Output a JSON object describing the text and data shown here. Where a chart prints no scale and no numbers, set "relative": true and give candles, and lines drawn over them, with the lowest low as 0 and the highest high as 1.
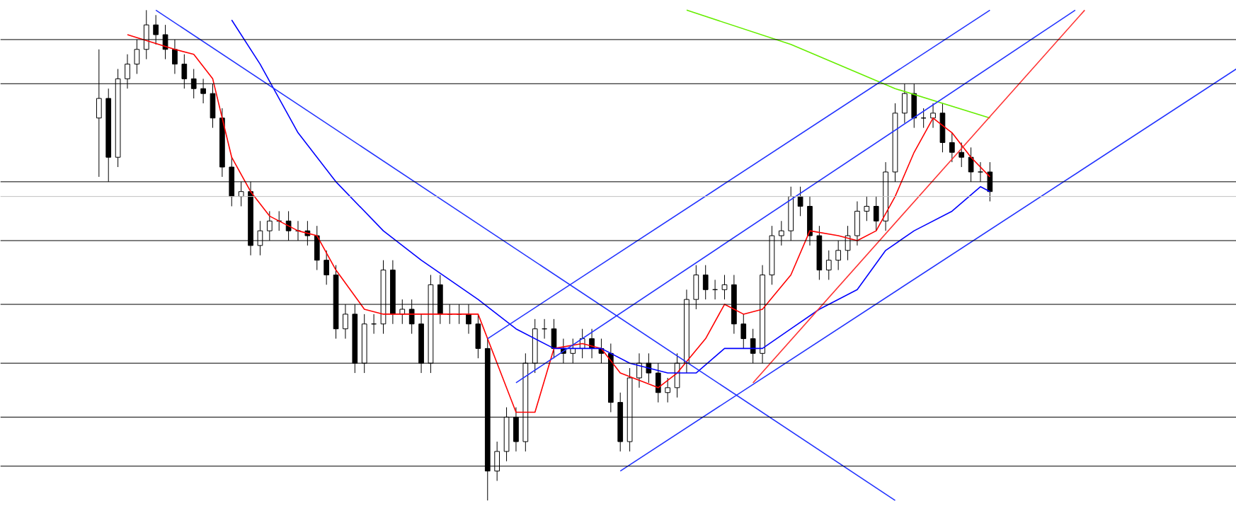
{
  "chart_data": {
    "type": "candlestick",
    "relative": true,
    "grid": false,
    "categories": [
      null,
      null,
      null,
      null,
      null,
      null,
      null,
      null,
      null,
      null,
      null,
      null,
      null,
      null,
      null,
      null,
      null,
      null,
      null,
      null,
      null,
      null,
      null,
      null,
      null,
      null,
      null,
      null,
      null,
      null,
      null,
      null,
      null,
      null,
      null,
      null,
      null,
      null,
      null,
      null,
      null,
      null,
      null,
      null,
      null,
      null,
      null,
      null,
      null,
      null,
      null,
      null,
      null,
      null,
      null,
      null,
      null,
      null,
      null,
      null,
      null,
      null,
      null,
      null,
      null,
      null,
      null,
      null,
      null,
      null,
      null,
      null,
      null,
      null,
      null,
      null,
      null,
      null,
      null,
      null,
      null,
      null,
      null,
      null,
      null,
      null,
      null,
      null,
      null,
      null,
      null,
      null,
      null,
      null,
      null,
      null,
      null,
      null,
      null,
      null,
      null,
      null,
      null,
      null,
      null,
      null,
      null,
      null,
      null,
      null,
      null,
      null,
      null,
      null,
      null,
      null,
      null,
      null,
      null,
      null,
      null
    ],
    "ohlc": [
      [
        0.78,
        0.92,
        0.66,
        0.82
      ],
      [
        0.82,
        0.84,
        0.65,
        0.7
      ],
      [
        0.7,
        0.88,
        0.68,
        0.86
      ],
      [
        0.86,
        0.91,
        0.84,
        0.89
      ],
      [
        0.89,
        0.94,
        0.87,
        0.92
      ],
      [
        0.92,
        1.0,
        0.9,
        0.97
      ],
      [
        0.97,
        0.99,
        0.93,
        0.95
      ],
      [
        0.95,
        0.97,
        0.9,
        0.92
      ],
      [
        0.92,
        0.94,
        0.87,
        0.89
      ],
      [
        0.89,
        0.91,
        0.84,
        0.86
      ],
      [
        0.86,
        0.88,
        0.82,
        0.84
      ],
      [
        0.84,
        0.86,
        0.81,
        0.83
      ],
      [
        0.83,
        0.85,
        0.76,
        0.78
      ],
      [
        0.78,
        0.8,
        0.66,
        0.68
      ],
      [
        0.68,
        0.7,
        0.6,
        0.62
      ],
      [
        0.62,
        0.65,
        0.6,
        0.63
      ],
      [
        0.63,
        0.65,
        0.5,
        0.52
      ],
      [
        0.52,
        0.57,
        0.5,
        0.55
      ],
      [
        0.55,
        0.59,
        0.53,
        0.57
      ],
      [
        0.57,
        0.59,
        0.55,
        0.57
      ],
      [
        0.57,
        0.59,
        0.53,
        0.55
      ],
      [
        0.55,
        0.57,
        0.53,
        0.55
      ],
      [
        0.55,
        0.57,
        0.52,
        0.54
      ],
      [
        0.54,
        0.56,
        0.47,
        0.49
      ],
      [
        0.49,
        0.51,
        0.44,
        0.46
      ],
      [
        0.46,
        0.48,
        0.33,
        0.35
      ],
      [
        0.35,
        0.4,
        0.33,
        0.38
      ],
      [
        0.38,
        0.4,
        0.26,
        0.28
      ],
      [
        0.28,
        0.38,
        0.26,
        0.36
      ],
      [
        0.36,
        0.38,
        0.34,
        0.36
      ],
      [
        0.36,
        0.49,
        0.34,
        0.47
      ],
      [
        0.47,
        0.49,
        0.36,
        0.38
      ],
      [
        0.38,
        0.41,
        0.36,
        0.39
      ],
      [
        0.39,
        0.41,
        0.34,
        0.36
      ],
      [
        0.36,
        0.38,
        0.26,
        0.28
      ],
      [
        0.28,
        0.46,
        0.26,
        0.44
      ],
      [
        0.44,
        0.46,
        0.36,
        0.38
      ],
      [
        0.38,
        0.4,
        0.36,
        0.38
      ],
      [
        0.38,
        0.4,
        0.36,
        0.38
      ],
      [
        0.38,
        0.4,
        0.34,
        0.36
      ],
      [
        0.36,
        0.38,
        0.29,
        0.31
      ],
      [
        0.31,
        0.33,
        0.0,
        0.06
      ],
      [
        0.06,
        0.12,
        0.04,
        0.1
      ],
      [
        0.1,
        0.19,
        0.08,
        0.17
      ],
      [
        0.17,
        0.19,
        0.1,
        0.12
      ],
      [
        0.12,
        0.3,
        0.1,
        0.28
      ],
      [
        0.28,
        0.37,
        0.26,
        0.35
      ],
      [
        0.35,
        0.37,
        0.33,
        0.35
      ],
      [
        0.35,
        0.37,
        0.29,
        0.31
      ],
      [
        0.31,
        0.33,
        0.28,
        0.3
      ],
      [
        0.3,
        0.33,
        0.28,
        0.31
      ],
      [
        0.31,
        0.35,
        0.29,
        0.33
      ],
      [
        0.33,
        0.35,
        0.29,
        0.31
      ],
      [
        0.31,
        0.33,
        0.28,
        0.3
      ],
      [
        0.3,
        0.32,
        0.18,
        0.2
      ],
      [
        0.2,
        0.22,
        0.1,
        0.12
      ],
      [
        0.12,
        0.27,
        0.1,
        0.25
      ],
      [
        0.25,
        0.3,
        0.23,
        0.28
      ],
      [
        0.28,
        0.3,
        0.24,
        0.26
      ],
      [
        0.26,
        0.28,
        0.2,
        0.22
      ],
      [
        0.22,
        0.25,
        0.2,
        0.23
      ],
      [
        0.23,
        0.3,
        0.21,
        0.28
      ],
      [
        0.28,
        0.43,
        0.26,
        0.41
      ],
      [
        0.41,
        0.48,
        0.39,
        0.46
      ],
      [
        0.46,
        0.48,
        0.41,
        0.43
      ],
      [
        0.43,
        0.45,
        0.41,
        0.43
      ],
      [
        0.43,
        0.46,
        0.41,
        0.44
      ],
      [
        0.44,
        0.46,
        0.34,
        0.36
      ],
      [
        0.36,
        0.38,
        0.31,
        0.33
      ],
      [
        0.33,
        0.35,
        0.28,
        0.3
      ],
      [
        0.3,
        0.48,
        0.28,
        0.46
      ],
      [
        0.46,
        0.56,
        0.44,
        0.54
      ],
      [
        0.54,
        0.57,
        0.52,
        0.55
      ],
      [
        0.55,
        0.64,
        0.53,
        0.62
      ],
      [
        0.62,
        0.64,
        0.58,
        0.6
      ],
      [
        0.6,
        0.62,
        0.52,
        0.54
      ],
      [
        0.54,
        0.56,
        0.45,
        0.47
      ],
      [
        0.47,
        0.51,
        0.45,
        0.49
      ],
      [
        0.49,
        0.53,
        0.47,
        0.51
      ],
      [
        0.51,
        0.56,
        0.49,
        0.54
      ],
      [
        0.54,
        0.61,
        0.52,
        0.59
      ],
      [
        0.59,
        0.62,
        0.57,
        0.6
      ],
      [
        0.6,
        0.62,
        0.55,
        0.57
      ],
      [
        0.57,
        0.69,
        0.55,
        0.67
      ],
      [
        0.67,
        0.81,
        0.65,
        0.79
      ],
      [
        0.79,
        0.85,
        0.77,
        0.83
      ],
      [
        0.83,
        0.85,
        0.76,
        0.78
      ],
      [
        0.78,
        0.8,
        0.76,
        0.78
      ],
      [
        0.78,
        0.81,
        0.76,
        0.79
      ],
      [
        0.79,
        0.81,
        0.71,
        0.73
      ],
      [
        0.73,
        0.75,
        0.69,
        0.71
      ],
      [
        0.71,
        0.73,
        0.68,
        0.7
      ],
      [
        0.7,
        0.72,
        0.65,
        0.67
      ],
      [
        0.67,
        0.69,
        0.65,
        0.67
      ],
      [
        0.67,
        0.69,
        0.61,
        0.63
      ],
      null,
      null,
      null,
      null,
      null,
      null,
      null,
      null,
      null,
      null,
      null,
      null,
      null,
      null,
      null,
      null,
      null,
      null,
      null,
      null,
      null,
      null,
      null,
      null,
      null,
      null
    ],
    "series": [
      {
        "type": "line",
        "color": "#ff0000",
        "values": [
          null,
          null,
          null,
          0.95,
          null,
          null,
          null,
          null,
          0.92,
          null,
          0.91,
          null,
          0.86,
          null,
          0.7,
          null,
          0.63,
          null,
          0.58,
          null,
          null,
          0.55,
          null,
          0.54,
          null,
          0.47,
          null,
          null,
          0.39,
          null,
          0.38,
          null,
          null,
          0.38,
          null,
          null,
          0.38,
          null,
          null,
          null,
          0.38,
          null,
          0.28,
          null,
          0.18,
          null,
          0.18,
          null,
          0.31,
          null,
          null,
          0.32,
          null,
          0.31,
          null,
          0.26,
          null,
          null,
          null,
          0.23,
          null,
          0.26,
          null,
          null,
          0.33,
          null,
          0.4,
          null,
          0.38,
          null,
          0.39,
          null,
          null,
          0.46,
          null,
          0.55,
          null,
          null,
          0.54,
          null,
          0.53,
          null,
          0.55,
          null,
          0.62,
          null,
          0.71,
          null,
          0.78,
          null,
          0.75,
          null,
          0.7,
          null,
          0.66,
          null,
          null,
          null,
          null,
          null,
          null,
          null,
          null,
          null,
          null,
          null,
          null,
          null,
          null,
          null,
          null,
          null,
          null,
          null,
          null,
          null,
          null,
          null,
          null,
          null,
          null
        ]
      },
      {
        "type": "line",
        "color": "#0000ff",
        "values": [
          null,
          null,
          null,
          null,
          null,
          null,
          null,
          null,
          null,
          null,
          null,
          null,
          null,
          null,
          0.98,
          null,
          null,
          0.89,
          null,
          null,
          null,
          0.75,
          null,
          null,
          null,
          0.65,
          null,
          null,
          null,
          null,
          0.55,
          null,
          null,
          null,
          0.49,
          null,
          null,
          0.45,
          null,
          null,
          0.41,
          null,
          null,
          null,
          0.35,
          null,
          null,
          null,
          0.31,
          null,
          null,
          null,
          null,
          0.31,
          null,
          null,
          0.28,
          null,
          null,
          null,
          0.26,
          null,
          null,
          0.26,
          null,
          null,
          0.31,
          null,
          null,
          null,
          0.31,
          null,
          null,
          0.35,
          null,
          null,
          0.39,
          null,
          null,
          null,
          0.43,
          null,
          null,
          0.51,
          null,
          null,
          0.55,
          null,
          null,
          null,
          0.59,
          null,
          null,
          0.64,
          0.63,
          null,
          null,
          null,
          null,
          null,
          null,
          null,
          null,
          null,
          null,
          null,
          null,
          null,
          null,
          null,
          null,
          null,
          null,
          null,
          null,
          null,
          null,
          null,
          null,
          null,
          null
        ]
      },
      {
        "type": "line",
        "color": "#66ee00",
        "values": [
          null,
          null,
          null,
          null,
          null,
          null,
          null,
          null,
          null,
          null,
          null,
          null,
          null,
          null,
          null,
          null,
          null,
          null,
          null,
          null,
          null,
          null,
          null,
          null,
          null,
          null,
          null,
          null,
          null,
          null,
          null,
          null,
          null,
          null,
          null,
          null,
          null,
          null,
          null,
          null,
          null,
          null,
          null,
          null,
          null,
          null,
          null,
          null,
          null,
          null,
          null,
          null,
          null,
          null,
          null,
          null,
          null,
          null,
          null,
          null,
          null,
          null,
          1.0,
          null,
          null,
          null,
          null,
          null,
          null,
          null,
          null,
          null,
          null,
          0.93,
          null,
          null,
          null,
          null,
          null,
          null,
          null,
          null,
          null,
          null,
          0.84,
          null,
          null,
          null,
          null,
          null,
          null,
          null,
          null,
          null,
          0.78,
          null,
          null,
          null,
          null,
          null,
          null,
          null,
          null,
          null,
          null,
          null,
          null,
          null,
          null,
          null,
          null,
          null,
          null,
          null,
          null,
          null,
          null,
          null,
          null,
          null,
          null
        ]
      },
      {
        "type": "line",
        "color": "#2233ff",
        "values": [
          null,
          null,
          null,
          null,
          null,
          null,
          1.0,
          null,
          null,
          null,
          null,
          null,
          null,
          null,
          null,
          null,
          null,
          null,
          null,
          null,
          null,
          null,
          null,
          null,
          null,
          null,
          null,
          null,
          null,
          null,
          null,
          null,
          null,
          null,
          null,
          null,
          null,
          null,
          null,
          null,
          null,
          null,
          null,
          null,
          null,
          null,
          null,
          null,
          null,
          null,
          null,
          null,
          null,
          null,
          null,
          null,
          null,
          null,
          null,
          null,
          null,
          null,
          null,
          null,
          null,
          null,
          null,
          null,
          null,
          null,
          null,
          null,
          null,
          null,
          null,
          null,
          null,
          null,
          null,
          null,
          null,
          null,
          null,
          null,
          0.0,
          null,
          null,
          null,
          null,
          null,
          null,
          null,
          null,
          null,
          null,
          null,
          null,
          null,
          null,
          null,
          null,
          null,
          null,
          null,
          null,
          null,
          null,
          null,
          null,
          null,
          null,
          null,
          null,
          null,
          null,
          null,
          null,
          null,
          null,
          null,
          null
        ]
      },
      {
        "type": "line",
        "color": "#2233ff",
        "values": [
          null,
          null,
          null,
          null,
          null,
          null,
          null,
          null,
          null,
          null,
          null,
          null,
          null,
          null,
          null,
          null,
          null,
          null,
          null,
          null,
          null,
          null,
          null,
          null,
          null,
          null,
          null,
          null,
          null,
          null,
          null,
          null,
          null,
          null,
          null,
          null,
          null,
          null,
          null,
          null,
          null,
          0.33,
          null,
          null,
          null,
          null,
          null,
          null,
          null,
          null,
          null,
          null,
          null,
          null,
          null,
          null,
          null,
          null,
          null,
          null,
          null,
          null,
          null,
          null,
          null,
          null,
          null,
          null,
          null,
          null,
          null,
          null,
          null,
          null,
          null,
          null,
          null,
          null,
          null,
          null,
          null,
          null,
          null,
          null,
          null,
          null,
          null,
          null,
          null,
          null,
          null,
          null,
          null,
          null,
          1.0,
          null,
          null,
          null,
          null,
          null,
          null,
          null,
          null,
          null,
          null,
          null,
          null,
          null,
          null,
          null,
          null,
          null,
          null,
          null,
          null,
          null,
          null,
          null,
          null,
          null,
          null
        ]
      },
      {
        "type": "line",
        "color": "#2233ff",
        "values": [
          null,
          null,
          null,
          null,
          null,
          null,
          null,
          null,
          null,
          null,
          null,
          null,
          null,
          null,
          null,
          null,
          null,
          null,
          null,
          null,
          null,
          null,
          null,
          null,
          null,
          null,
          null,
          null,
          null,
          null,
          null,
          null,
          null,
          null,
          null,
          null,
          null,
          null,
          null,
          null,
          null,
          null,
          null,
          null,
          0.24,
          null,
          null,
          null,
          null,
          null,
          null,
          null,
          null,
          null,
          null,
          null,
          null,
          null,
          null,
          null,
          null,
          null,
          null,
          null,
          null,
          null,
          null,
          null,
          null,
          null,
          null,
          null,
          null,
          null,
          null,
          null,
          null,
          null,
          null,
          null,
          null,
          null,
          null,
          null,
          null,
          null,
          null,
          null,
          null,
          null,
          null,
          null,
          null,
          null,
          null,
          null,
          null,
          null,
          null,
          null,
          null,
          null,
          null,
          1.0,
          null,
          null,
          null,
          null,
          null,
          null,
          null,
          null,
          null,
          null,
          null,
          null,
          null,
          null,
          null,
          null,
          null
        ]
      },
      {
        "type": "line",
        "color": "#2233ff",
        "values": [
          null,
          null,
          null,
          null,
          null,
          null,
          null,
          null,
          null,
          null,
          null,
          null,
          null,
          null,
          null,
          null,
          null,
          null,
          null,
          null,
          null,
          null,
          null,
          null,
          null,
          null,
          null,
          null,
          null,
          null,
          null,
          null,
          null,
          null,
          null,
          null,
          null,
          null,
          null,
          null,
          null,
          null,
          null,
          null,
          null,
          null,
          null,
          null,
          null,
          null,
          null,
          null,
          null,
          null,
          null,
          0.06,
          null,
          null,
          null,
          null,
          null,
          null,
          null,
          null,
          null,
          null,
          null,
          null,
          null,
          null,
          null,
          null,
          null,
          null,
          null,
          null,
          null,
          null,
          null,
          null,
          null,
          null,
          null,
          null,
          null,
          null,
          null,
          null,
          null,
          null,
          null,
          null,
          null,
          null,
          null,
          null,
          null,
          null,
          null,
          null,
          null,
          null,
          null,
          null,
          null,
          null,
          null,
          null,
          null,
          null,
          null,
          null,
          null,
          null,
          null,
          null,
          null,
          null,
          null,
          null,
          0.88
        ]
      },
      {
        "type": "line",
        "color": "#ff3333",
        "values": [
          null,
          null,
          null,
          null,
          null,
          null,
          null,
          null,
          null,
          null,
          null,
          null,
          null,
          null,
          null,
          null,
          null,
          null,
          null,
          null,
          null,
          null,
          null,
          null,
          null,
          null,
          null,
          null,
          null,
          null,
          null,
          null,
          null,
          null,
          null,
          null,
          null,
          null,
          null,
          null,
          null,
          null,
          null,
          null,
          null,
          null,
          null,
          null,
          null,
          null,
          null,
          null,
          null,
          null,
          null,
          null,
          null,
          null,
          null,
          null,
          null,
          null,
          null,
          null,
          null,
          null,
          null,
          null,
          null,
          0.24,
          null,
          null,
          null,
          null,
          null,
          null,
          null,
          null,
          null,
          null,
          null,
          null,
          null,
          null,
          null,
          null,
          null,
          null,
          null,
          null,
          null,
          null,
          null,
          null,
          null,
          null,
          null,
          null,
          null,
          null,
          null,
          null,
          null,
          null,
          1.0,
          null,
          null,
          null,
          null,
          null,
          null,
          null,
          null,
          null,
          null,
          null,
          null,
          null,
          null,
          null,
          null
        ]
      }
    ],
    "ref_lines": [
      {
        "axis": "y",
        "value": 0.94,
        "color": "#000000"
      },
      {
        "axis": "y",
        "value": 0.85,
        "color": "#000000"
      },
      {
        "axis": "y",
        "value": 0.65,
        "color": "#000000"
      },
      {
        "axis": "y",
        "value": 0.62,
        "color": "#c0c0c0"
      },
      {
        "axis": "y",
        "value": 0.53,
        "color": "#000000"
      },
      {
        "axis": "y",
        "value": 0.4,
        "color": "#000000"
      },
      {
        "axis": "y",
        "value": 0.28,
        "color": "#000000"
      },
      {
        "axis": "y",
        "value": 0.17,
        "color": "#000000"
      },
      {
        "axis": "y",
        "value": 0.07,
        "color": "#000000"
      }
    ]
  }
}
